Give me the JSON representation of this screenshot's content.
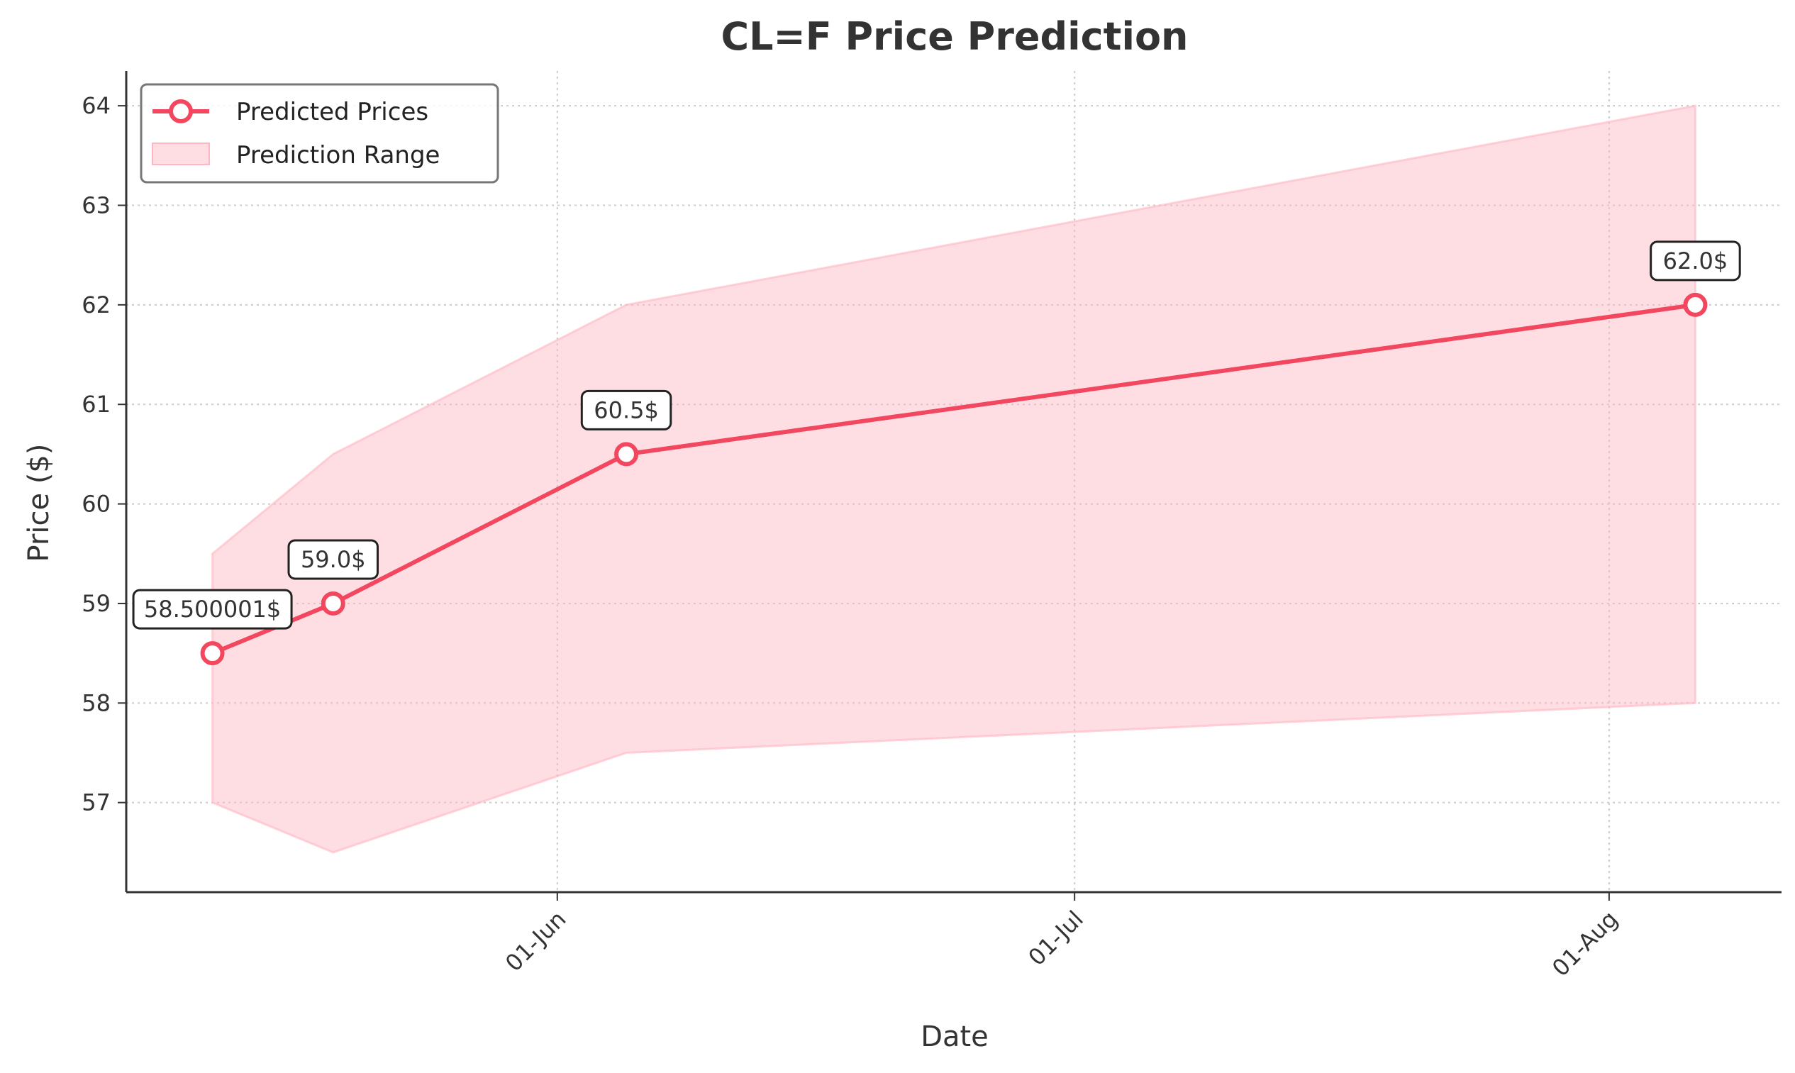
{
  "chart_data": {
    "type": "line",
    "title": "CL=F Price Prediction",
    "xlabel": "Date",
    "ylabel": "Price ($)",
    "x_ticks": [
      {
        "date": "2025-06-01",
        "label": "01-Jun"
      },
      {
        "date": "2025-07-01",
        "label": "01-Jul"
      },
      {
        "date": "2025-08-01",
        "label": "01-Aug"
      }
    ],
    "y_ticks": [
      57,
      58,
      59,
      60,
      61,
      62,
      63,
      64
    ],
    "xlim": [
      "2025-05-07",
      "2025-08-11"
    ],
    "ylim": [
      56.1,
      64.35
    ],
    "grid": true,
    "legend_position": "top-left",
    "colors": {
      "line": "#f2475f",
      "band": "#ffb6c1",
      "axis": "#333333",
      "grid": "#cccccc"
    },
    "series": [
      {
        "name": "Predicted Prices",
        "kind": "line",
        "x": [
          "2025-05-12",
          "2025-05-19",
          "2025-06-05",
          "2025-08-06"
        ],
        "y": [
          58.500001,
          59.0,
          60.5,
          62.0
        ],
        "labels": [
          "58.500001$",
          "59.0$",
          "60.5$",
          "62.0$"
        ]
      },
      {
        "name": "Prediction Range",
        "kind": "band",
        "x": [
          "2025-05-12",
          "2025-05-19",
          "2025-06-05",
          "2025-08-06"
        ],
        "lower": [
          57.0,
          56.5,
          57.5,
          58.0
        ],
        "upper": [
          59.5,
          60.5,
          62.0,
          64.0
        ]
      }
    ]
  }
}
